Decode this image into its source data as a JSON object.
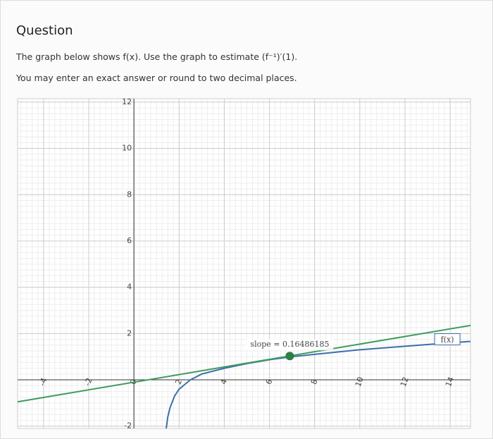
{
  "question": {
    "heading": "Question",
    "prompt": "The graph below shows f(x). Use the graph to estimate (f⁻¹)′(1).",
    "note": "You may enter an exact answer or round to two decimal places."
  },
  "chart_data": {
    "type": "line",
    "xlim": [
      -5.15,
      14.9
    ],
    "ylim": [
      -2.1,
      12.15
    ],
    "xticks": [
      -4,
      -2,
      0,
      2,
      4,
      6,
      8,
      10,
      12,
      14
    ],
    "yticks": [
      -2,
      2,
      4,
      6,
      8,
      10,
      12
    ],
    "grid": true,
    "series": [
      {
        "name": "f(x)",
        "color": "#3b6fa8",
        "x": [
          1.43,
          1.5,
          1.6,
          1.8,
          2,
          2.5,
          3,
          4,
          5,
          6,
          7,
          8,
          10,
          12,
          14,
          14.9
        ],
        "values": [
          -2.1,
          -1.6,
          -1.2,
          -0.7,
          -0.4,
          0,
          0.25,
          0.5,
          0.7,
          0.87,
          1.0,
          1.1,
          1.3,
          1.45,
          1.6,
          1.66
        ]
      },
      {
        "color": "#3f9b5e",
        "x": [
          -5.15,
          14.9
        ],
        "values": [
          -0.95,
          2.35
        ]
      }
    ],
    "points": [
      {
        "x": 6.9,
        "y": 1.03,
        "color": "#2e7d46"
      }
    ],
    "annotation": "slope = 0.16486185"
  }
}
